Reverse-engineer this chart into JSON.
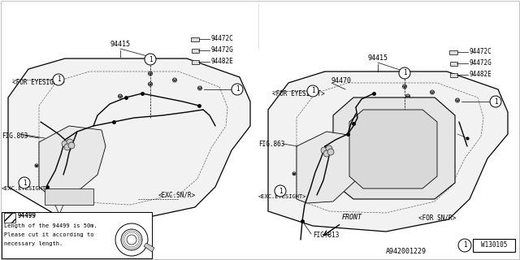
{
  "bg_color": "#ffffff",
  "line_color": "#000000",
  "text_color": "#000000",
  "fig_width": 6.4,
  "fig_height": 3.2,
  "dpi": 100,
  "part_number_bottom": "A942001229",
  "hardware_number": "W130105",
  "diagram_note_lines": [
    "94499",
    "Length of the 94499 is 50m.",
    "Please cut it according to",
    "necessary length."
  ]
}
